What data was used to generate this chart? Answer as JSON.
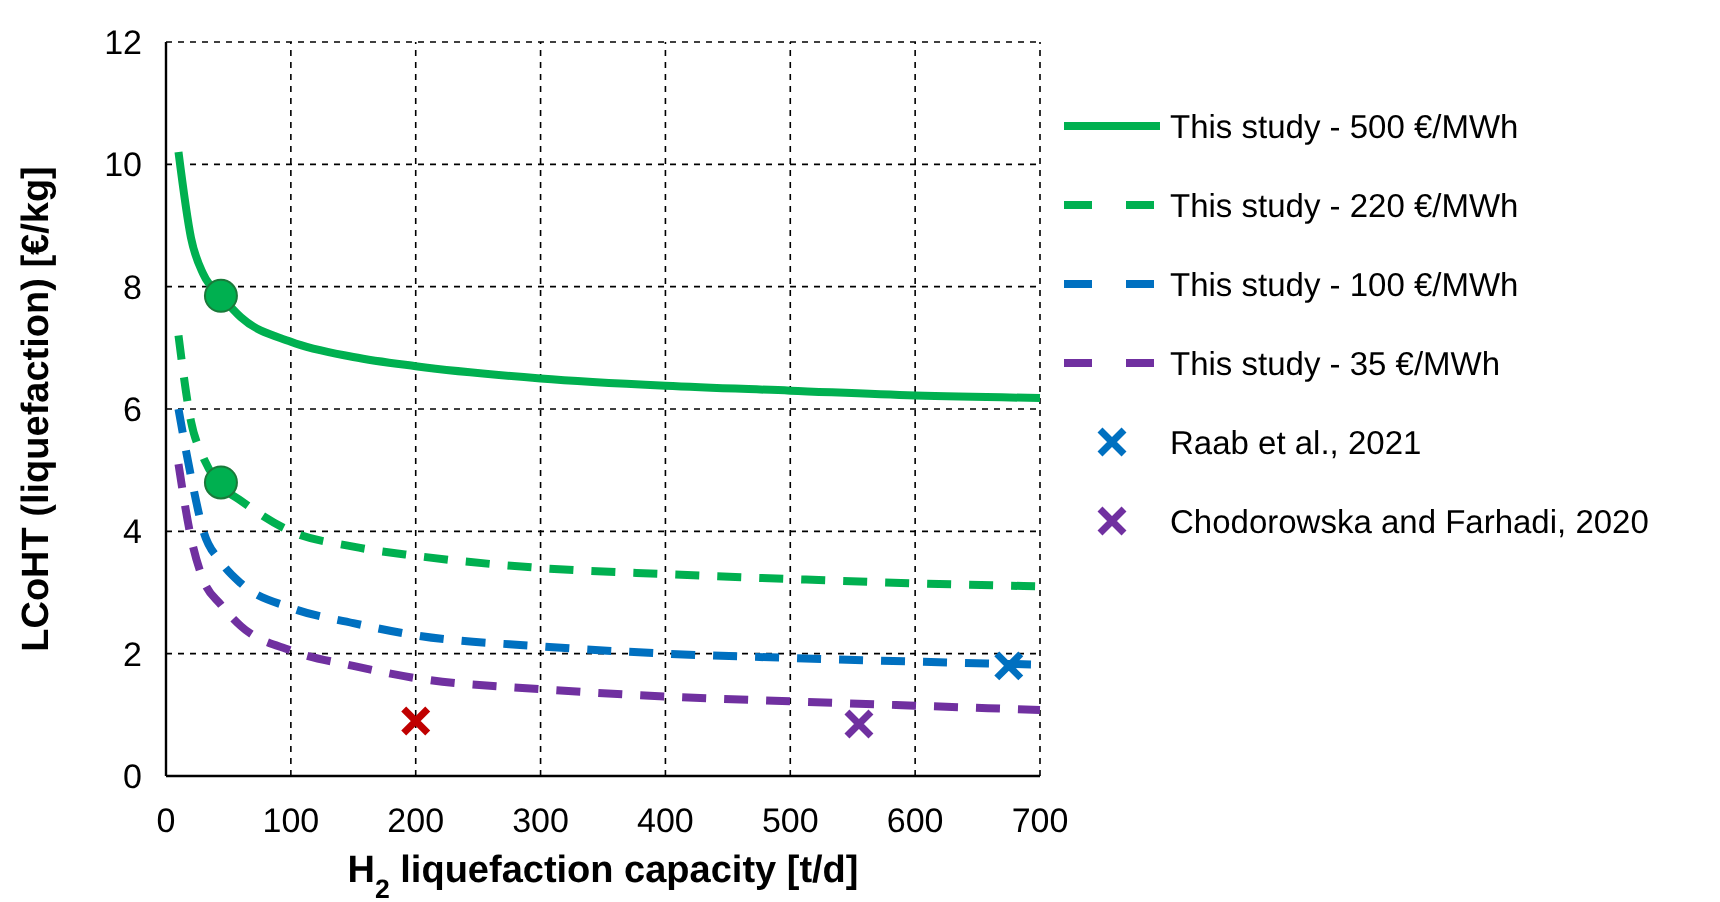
{
  "chart_data": {
    "type": "line",
    "xlabel": "H$_{2}$ liquefaction capacity [t/d]",
    "ylabel": "LCoHT (liquefaction) [€/kg]",
    "xlim": [
      0,
      700
    ],
    "xticks": [
      0,
      100,
      200,
      300,
      400,
      500,
      600,
      700
    ],
    "ylim": [
      0,
      12
    ],
    "yticks": [
      0,
      2,
      4,
      6,
      8,
      10,
      12
    ],
    "grid": true,
    "legend": "right",
    "series": [
      {
        "name": "This study - 500 €/MWh",
        "color": "#00b050",
        "line_style": "solid",
        "marker": "none",
        "x": [
          10,
          20,
          30,
          44,
          60,
          100,
          150,
          200,
          300,
          400,
          500,
          600,
          700
        ],
        "values": [
          10.2,
          8.8,
          8.2,
          7.85,
          7.5,
          7.1,
          6.85,
          6.7,
          6.5,
          6.38,
          6.3,
          6.22,
          6.18
        ]
      },
      {
        "name": "This study - 220 €/MWh",
        "color": "#00b050",
        "line_style": "dashed",
        "marker": "none",
        "x": [
          10,
          20,
          30,
          44,
          60,
          100,
          150,
          200,
          300,
          400,
          500,
          600,
          700
        ],
        "values": [
          7.2,
          5.8,
          5.2,
          4.75,
          4.5,
          4.0,
          3.75,
          3.6,
          3.4,
          3.3,
          3.22,
          3.15,
          3.1
        ]
      },
      {
        "name": "This study - 100 €/MWh",
        "color": "#0070c0",
        "line_style": "dashed",
        "marker": "none",
        "x": [
          10,
          20,
          30,
          44,
          60,
          100,
          150,
          200,
          300,
          400,
          500,
          600,
          700
        ],
        "values": [
          6.0,
          4.9,
          4.0,
          3.5,
          3.15,
          2.75,
          2.5,
          2.3,
          2.12,
          2.0,
          1.93,
          1.87,
          1.82
        ]
      },
      {
        "name": "This study - 35 €/MWh",
        "color": "#7030a0",
        "line_style": "dashed",
        "marker": "none",
        "x": [
          10,
          20,
          30,
          44,
          60,
          100,
          150,
          200,
          300,
          400,
          500,
          600,
          700
        ],
        "values": [
          5.1,
          3.9,
          3.2,
          2.8,
          2.45,
          2.05,
          1.8,
          1.6,
          1.42,
          1.3,
          1.22,
          1.15,
          1.08
        ]
      },
      {
        "name": "Raab et al., 2021",
        "type": "scatter",
        "marker": "cross",
        "color": "#0070c0",
        "x": [
          675
        ],
        "values": [
          1.8
        ]
      },
      {
        "name": "Chodorowska and Farhadi, 2020",
        "type": "scatter",
        "marker": "cross",
        "color": "#7030a0",
        "x": [
          555
        ],
        "values": [
          0.85
        ]
      },
      {
        "type": "scatter",
        "marker": "cross",
        "color": "#c00000",
        "x": [
          200
        ],
        "values": [
          0.9
        ]
      },
      {
        "type": "scatter",
        "marker": "circle",
        "color": "#00b050",
        "x": [
          44,
          44
        ],
        "values": [
          7.85,
          4.8
        ]
      }
    ]
  }
}
